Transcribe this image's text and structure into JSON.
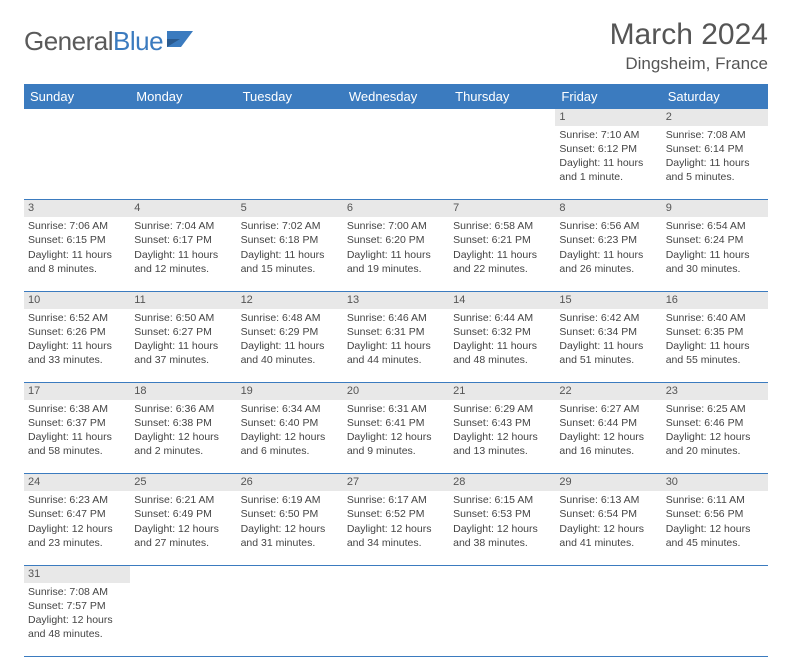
{
  "logo": {
    "text1": "General",
    "text2": "Blue"
  },
  "title": "March 2024",
  "location": "Dingsheim, France",
  "daysOfWeek": [
    "Sunday",
    "Monday",
    "Tuesday",
    "Wednesday",
    "Thursday",
    "Friday",
    "Saturday"
  ],
  "colors": {
    "header_bg": "#3b7bbf",
    "header_fg": "#ffffff",
    "daynum_bg": "#e8e8e8",
    "border": "#3b7bbf",
    "text": "#444444",
    "logo_gray": "#5a5a5a",
    "logo_blue": "#3b7bbf"
  },
  "weeks": [
    [
      null,
      null,
      null,
      null,
      null,
      {
        "n": "1",
        "sr": "Sunrise: 7:10 AM",
        "ss": "Sunset: 6:12 PM",
        "d1": "Daylight: 11 hours",
        "d2": "and 1 minute."
      },
      {
        "n": "2",
        "sr": "Sunrise: 7:08 AM",
        "ss": "Sunset: 6:14 PM",
        "d1": "Daylight: 11 hours",
        "d2": "and 5 minutes."
      }
    ],
    [
      {
        "n": "3",
        "sr": "Sunrise: 7:06 AM",
        "ss": "Sunset: 6:15 PM",
        "d1": "Daylight: 11 hours",
        "d2": "and 8 minutes."
      },
      {
        "n": "4",
        "sr": "Sunrise: 7:04 AM",
        "ss": "Sunset: 6:17 PM",
        "d1": "Daylight: 11 hours",
        "d2": "and 12 minutes."
      },
      {
        "n": "5",
        "sr": "Sunrise: 7:02 AM",
        "ss": "Sunset: 6:18 PM",
        "d1": "Daylight: 11 hours",
        "d2": "and 15 minutes."
      },
      {
        "n": "6",
        "sr": "Sunrise: 7:00 AM",
        "ss": "Sunset: 6:20 PM",
        "d1": "Daylight: 11 hours",
        "d2": "and 19 minutes."
      },
      {
        "n": "7",
        "sr": "Sunrise: 6:58 AM",
        "ss": "Sunset: 6:21 PM",
        "d1": "Daylight: 11 hours",
        "d2": "and 22 minutes."
      },
      {
        "n": "8",
        "sr": "Sunrise: 6:56 AM",
        "ss": "Sunset: 6:23 PM",
        "d1": "Daylight: 11 hours",
        "d2": "and 26 minutes."
      },
      {
        "n": "9",
        "sr": "Sunrise: 6:54 AM",
        "ss": "Sunset: 6:24 PM",
        "d1": "Daylight: 11 hours",
        "d2": "and 30 minutes."
      }
    ],
    [
      {
        "n": "10",
        "sr": "Sunrise: 6:52 AM",
        "ss": "Sunset: 6:26 PM",
        "d1": "Daylight: 11 hours",
        "d2": "and 33 minutes."
      },
      {
        "n": "11",
        "sr": "Sunrise: 6:50 AM",
        "ss": "Sunset: 6:27 PM",
        "d1": "Daylight: 11 hours",
        "d2": "and 37 minutes."
      },
      {
        "n": "12",
        "sr": "Sunrise: 6:48 AM",
        "ss": "Sunset: 6:29 PM",
        "d1": "Daylight: 11 hours",
        "d2": "and 40 minutes."
      },
      {
        "n": "13",
        "sr": "Sunrise: 6:46 AM",
        "ss": "Sunset: 6:31 PM",
        "d1": "Daylight: 11 hours",
        "d2": "and 44 minutes."
      },
      {
        "n": "14",
        "sr": "Sunrise: 6:44 AM",
        "ss": "Sunset: 6:32 PM",
        "d1": "Daylight: 11 hours",
        "d2": "and 48 minutes."
      },
      {
        "n": "15",
        "sr": "Sunrise: 6:42 AM",
        "ss": "Sunset: 6:34 PM",
        "d1": "Daylight: 11 hours",
        "d2": "and 51 minutes."
      },
      {
        "n": "16",
        "sr": "Sunrise: 6:40 AM",
        "ss": "Sunset: 6:35 PM",
        "d1": "Daylight: 11 hours",
        "d2": "and 55 minutes."
      }
    ],
    [
      {
        "n": "17",
        "sr": "Sunrise: 6:38 AM",
        "ss": "Sunset: 6:37 PM",
        "d1": "Daylight: 11 hours",
        "d2": "and 58 minutes."
      },
      {
        "n": "18",
        "sr": "Sunrise: 6:36 AM",
        "ss": "Sunset: 6:38 PM",
        "d1": "Daylight: 12 hours",
        "d2": "and 2 minutes."
      },
      {
        "n": "19",
        "sr": "Sunrise: 6:34 AM",
        "ss": "Sunset: 6:40 PM",
        "d1": "Daylight: 12 hours",
        "d2": "and 6 minutes."
      },
      {
        "n": "20",
        "sr": "Sunrise: 6:31 AM",
        "ss": "Sunset: 6:41 PM",
        "d1": "Daylight: 12 hours",
        "d2": "and 9 minutes."
      },
      {
        "n": "21",
        "sr": "Sunrise: 6:29 AM",
        "ss": "Sunset: 6:43 PM",
        "d1": "Daylight: 12 hours",
        "d2": "and 13 minutes."
      },
      {
        "n": "22",
        "sr": "Sunrise: 6:27 AM",
        "ss": "Sunset: 6:44 PM",
        "d1": "Daylight: 12 hours",
        "d2": "and 16 minutes."
      },
      {
        "n": "23",
        "sr": "Sunrise: 6:25 AM",
        "ss": "Sunset: 6:46 PM",
        "d1": "Daylight: 12 hours",
        "d2": "and 20 minutes."
      }
    ],
    [
      {
        "n": "24",
        "sr": "Sunrise: 6:23 AM",
        "ss": "Sunset: 6:47 PM",
        "d1": "Daylight: 12 hours",
        "d2": "and 23 minutes."
      },
      {
        "n": "25",
        "sr": "Sunrise: 6:21 AM",
        "ss": "Sunset: 6:49 PM",
        "d1": "Daylight: 12 hours",
        "d2": "and 27 minutes."
      },
      {
        "n": "26",
        "sr": "Sunrise: 6:19 AM",
        "ss": "Sunset: 6:50 PM",
        "d1": "Daylight: 12 hours",
        "d2": "and 31 minutes."
      },
      {
        "n": "27",
        "sr": "Sunrise: 6:17 AM",
        "ss": "Sunset: 6:52 PM",
        "d1": "Daylight: 12 hours",
        "d2": "and 34 minutes."
      },
      {
        "n": "28",
        "sr": "Sunrise: 6:15 AM",
        "ss": "Sunset: 6:53 PM",
        "d1": "Daylight: 12 hours",
        "d2": "and 38 minutes."
      },
      {
        "n": "29",
        "sr": "Sunrise: 6:13 AM",
        "ss": "Sunset: 6:54 PM",
        "d1": "Daylight: 12 hours",
        "d2": "and 41 minutes."
      },
      {
        "n": "30",
        "sr": "Sunrise: 6:11 AM",
        "ss": "Sunset: 6:56 PM",
        "d1": "Daylight: 12 hours",
        "d2": "and 45 minutes."
      }
    ],
    [
      {
        "n": "31",
        "sr": "Sunrise: 7:08 AM",
        "ss": "Sunset: 7:57 PM",
        "d1": "Daylight: 12 hours",
        "d2": "and 48 minutes."
      },
      null,
      null,
      null,
      null,
      null,
      null
    ]
  ]
}
